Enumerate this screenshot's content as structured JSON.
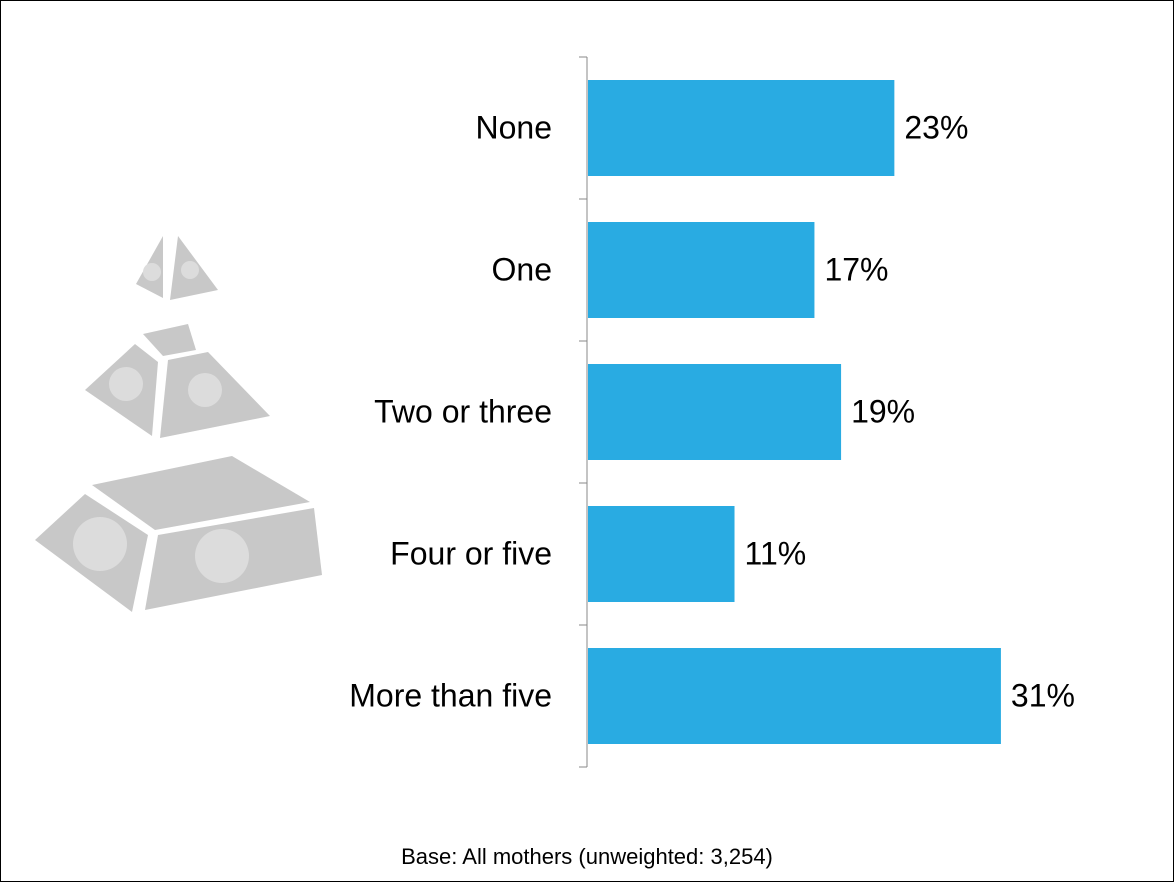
{
  "chart_data": {
    "type": "bar",
    "orientation": "horizontal",
    "categories": [
      "None",
      "One",
      "Two or three",
      "Four or five",
      "More than five"
    ],
    "values": [
      23,
      17,
      19,
      11,
      31
    ],
    "value_labels": [
      "23%",
      "17%",
      "19%",
      "11%",
      "31%"
    ],
    "color": "#29abe2",
    "footnote": "Base: All mothers (unweighted: 3,254)"
  }
}
